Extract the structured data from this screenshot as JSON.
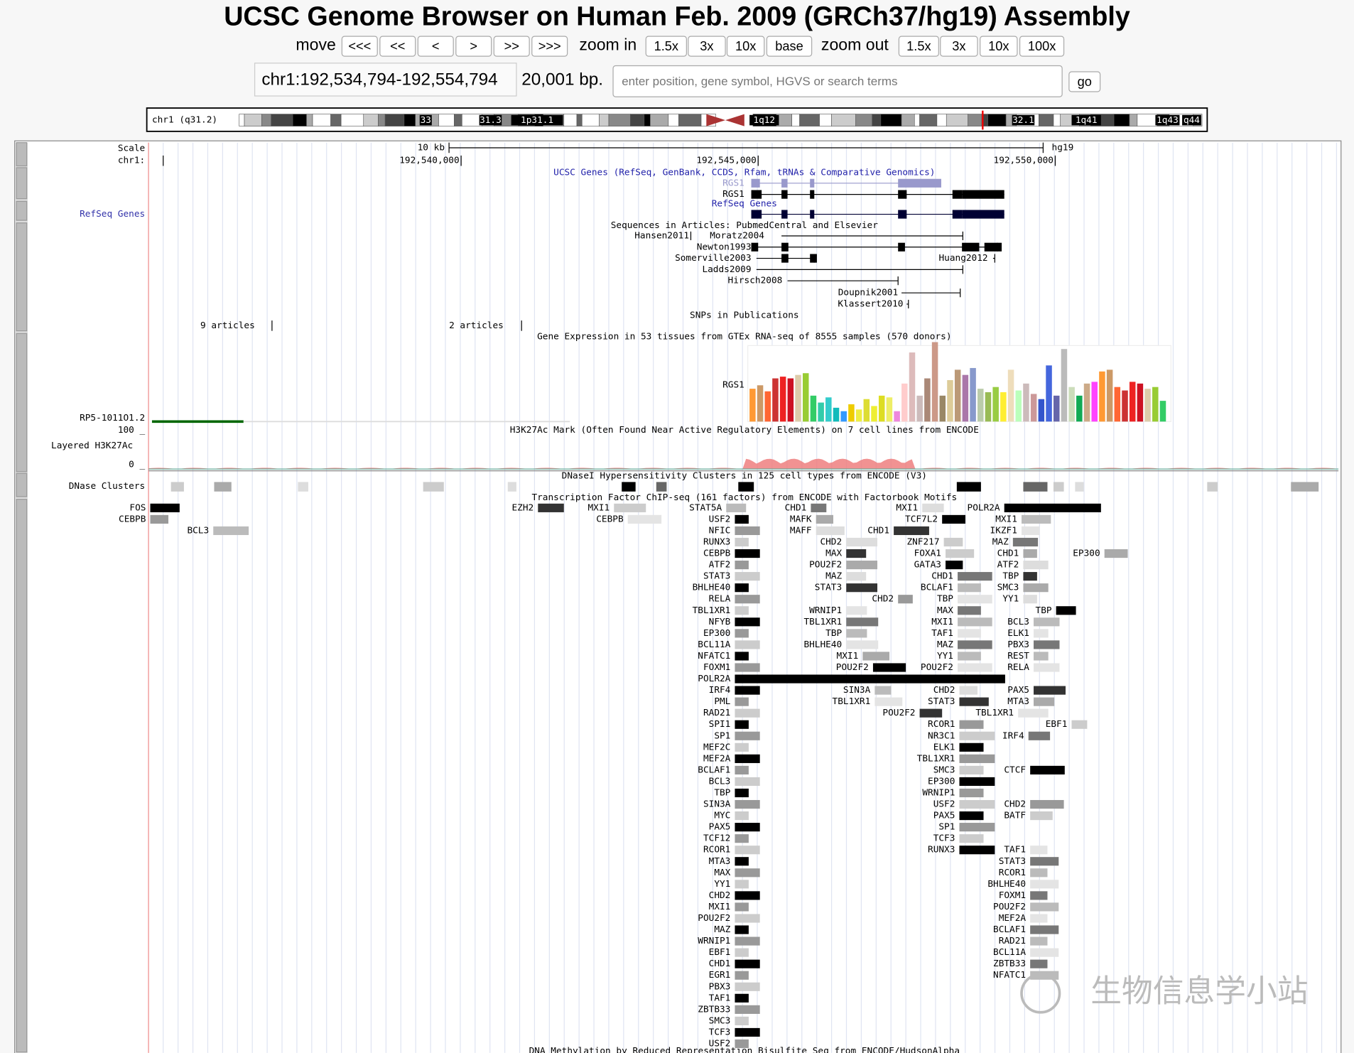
{
  "header": {
    "title": "UCSC Genome Browser on Human Feb. 2009 (GRCh37/hg19) Assembly",
    "move_label": "move",
    "move_buttons": [
      "<<<",
      "<<",
      "<",
      ">",
      ">>",
      ">>>"
    ],
    "zoom_in_label": "zoom in",
    "zoom_in_buttons": [
      "1.5x",
      "3x",
      "10x",
      "base"
    ],
    "zoom_out_label": "zoom out",
    "zoom_out_buttons": [
      "1.5x",
      "3x",
      "10x",
      "100x"
    ],
    "position": "chr1:192,534,794-192,554,794",
    "size": "20,001 bp.",
    "search_placeholder": "enter position, gene symbol, HGVS or search terms",
    "go": "go"
  },
  "ideogram": {
    "chrom": "chr1 (q31.2)",
    "bands": [
      "33",
      "31.3",
      "1p31.1",
      "1q12",
      "32.1",
      "1q41",
      "1q43",
      "q44"
    ]
  },
  "ruler": {
    "scale": "Scale",
    "scale_size": "10 kb",
    "assembly": "hg19",
    "chrom": "chr1:",
    "positions": [
      "192,540,000",
      "192,545,000",
      "192,550,000"
    ]
  },
  "left_labels": [
    "RefSeq Genes",
    "RP5-1011O1.2",
    "100 _",
    "Layered H3K27Ac",
    "0 _",
    "DNase Clusters"
  ],
  "track_titles": [
    "UCSC Genes (RefSeq, GenBank, CCDS, Rfam, tRNAs & Comparative Genomics)",
    "RefSeq Genes",
    "Sequences in Articles: PubmedCentral and Elsevier",
    "SNPs in Publications",
    "Gene Expression in 53 tissues from GTEx RNA-seq of 8555 samples (570 donors)",
    "H3K27Ac Mark (Often Found Near Active Regulatory Elements) on 7 cell lines from ENCODE",
    "DNaseI Hypersensitivity Clusters in 125 cell types from ENCODE (V3)",
    "Transcription Factor ChIP-seq (161 factors) from ENCODE with Factorbook Motifs",
    "DNA Methylation by Reduced Representation Bisulfite Seq from ENCODE/HudsonAlpha"
  ],
  "genes": [
    "RGS1",
    "RGS1",
    "RGS1"
  ],
  "articles": [
    "Hansen2011",
    "Moratz2004",
    "Newton1993",
    "Somerville2003",
    "Huang2012",
    "Ladds2009",
    "Hirsch2008",
    "Doupnik2001",
    "Klassert2010"
  ],
  "snp_articles": [
    "9 articles",
    "2 articles"
  ],
  "tf_columns": [
    [
      "USF2",
      "NFIC",
      "RUNX3",
      "CEBPB",
      "ATF2",
      "STAT3",
      "BHLHE40",
      "RELA",
      "TBL1XR1",
      "NFYB",
      "EP300",
      "BCL11A",
      "NFATC1",
      "FOXM1",
      "POLR2A",
      "IRF4",
      "PML",
      "RAD21",
      "SPI1",
      "SP1",
      "MEF2C",
      "MEF2A",
      "BCLAF1",
      "BCL3",
      "TBP",
      "SIN3A",
      "MYC",
      "PAX5",
      "TCF12",
      "RCOR1",
      "MTA3",
      "MAX",
      "YY1",
      "CHD2",
      "MXI1",
      "POU2F2",
      "MAZ",
      "WRNIP1",
      "EBF1",
      "CHD1",
      "EGR1",
      "PBX3",
      "TAF1",
      "ZBTB33",
      "SMC3",
      "TCF3",
      "USF2"
    ],
    [
      "STAT5A"
    ],
    [
      "EZH2"
    ],
    [
      "MXI1"
    ],
    [
      "CHD1"
    ],
    [
      "MXI1"
    ],
    [
      "POLR2A"
    ],
    [
      "CEBPB"
    ],
    [
      "MAFK",
      "MAFF"
    ],
    [
      "TCF7L2"
    ],
    [
      "MXI1",
      "IKZF1"
    ],
    [
      "CHD1"
    ],
    [
      "ZNF217"
    ],
    [
      "MAZ"
    ],
    [
      "CHD2",
      "MAX",
      "POU2F2",
      "MAZ",
      "STAT3"
    ],
    [
      "CHD2"
    ],
    [
      "WRNIP1",
      "TBL1XR1",
      "TBP",
      "BHLHE40"
    ],
    [
      "MXI1"
    ],
    [
      "POU2F2"
    ],
    [
      "SIN3A",
      "TBL1XR1"
    ],
    [
      "POU2F2"
    ],
    [
      "FOXA1",
      "GATA3"
    ],
    [
      "CHD1",
      "BCLAF1",
      "TBP",
      "MAX",
      "MXI1",
      "TAF1",
      "MAZ",
      "YY1",
      "POU2F2"
    ],
    [
      "CHD2",
      "STAT3"
    ],
    [
      "RCOR1",
      "NR3C1",
      "ELK1",
      "TBL1XR1",
      "SMC3",
      "EP300",
      "WRNIP1",
      "USF2",
      "PAX5",
      "SP1",
      "TCF3",
      "RUNX3"
    ],
    [
      "TBL1XR1"
    ],
    [
      "CHD1",
      "ATF2",
      "TBP",
      "SMC3",
      "YY1"
    ],
    [
      "TBP"
    ],
    [
      "BCL3",
      "ELK1",
      "PBX3",
      "REST",
      "RELA"
    ],
    [
      "PAX5",
      "MTA3"
    ],
    [
      "EBF1"
    ],
    [
      "IRF4"
    ],
    [
      "CTCF"
    ],
    [
      "CHD2",
      "BATF"
    ],
    [
      "TAF1",
      "STAT3",
      "RCOR1",
      "BHLHE40",
      "FOXM1",
      "POU2F2",
      "MEF2A",
      "BCLAF1",
      "RAD21",
      "BCL11A",
      "ZBTB33",
      "NFATC1"
    ],
    [
      "EP300"
    ],
    [
      "FOS",
      "CEBPB"
    ],
    [
      "BCL3"
    ]
  ],
  "watermark": "生物信息学小站"
}
